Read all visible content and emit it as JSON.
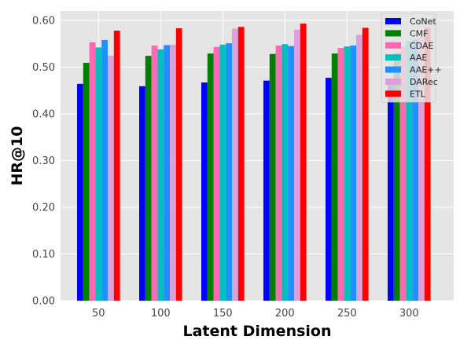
{
  "chart_data": {
    "type": "bar",
    "title": "",
    "xlabel": "Latent Dimension",
    "ylabel": "HR@10",
    "categories": [
      "50",
      "100",
      "150",
      "200",
      "250",
      "300"
    ],
    "ylim": [
      0.0,
      0.62
    ],
    "yticks": [
      "0.00",
      "0.10",
      "0.20",
      "0.30",
      "0.40",
      "0.50",
      "0.60"
    ],
    "ytick_values": [
      0.0,
      0.1,
      0.2,
      0.3,
      0.4,
      0.5,
      0.6
    ],
    "grid": true,
    "legend_position": "top-right",
    "series": [
      {
        "name": "CoNet",
        "color": "#0000ff",
        "values": [
          0.464,
          0.459,
          0.467,
          0.471,
          0.477,
          0.462
        ]
      },
      {
        "name": "CMF",
        "color": "#008000",
        "values": [
          0.509,
          0.524,
          0.529,
          0.528,
          0.529,
          0.53
        ]
      },
      {
        "name": "CDAE",
        "color": "#ff69b4",
        "values": [
          0.553,
          0.546,
          0.543,
          0.546,
          0.541,
          0.545
        ]
      },
      {
        "name": "AAE",
        "color": "#00bfbf",
        "values": [
          0.542,
          0.538,
          0.548,
          0.549,
          0.544,
          0.556
        ]
      },
      {
        "name": "AAE++",
        "color": "#1e90ff",
        "values": [
          0.558,
          0.547,
          0.551,
          0.545,
          0.546,
          0.559
        ]
      },
      {
        "name": "DARec",
        "color": "#dda0dd",
        "values": [
          0.524,
          0.548,
          0.582,
          0.58,
          0.569,
          0.566
        ]
      },
      {
        "name": "ETL",
        "color": "#ff0000",
        "values": [
          0.578,
          0.583,
          0.586,
          0.593,
          0.584,
          0.584
        ]
      }
    ]
  }
}
